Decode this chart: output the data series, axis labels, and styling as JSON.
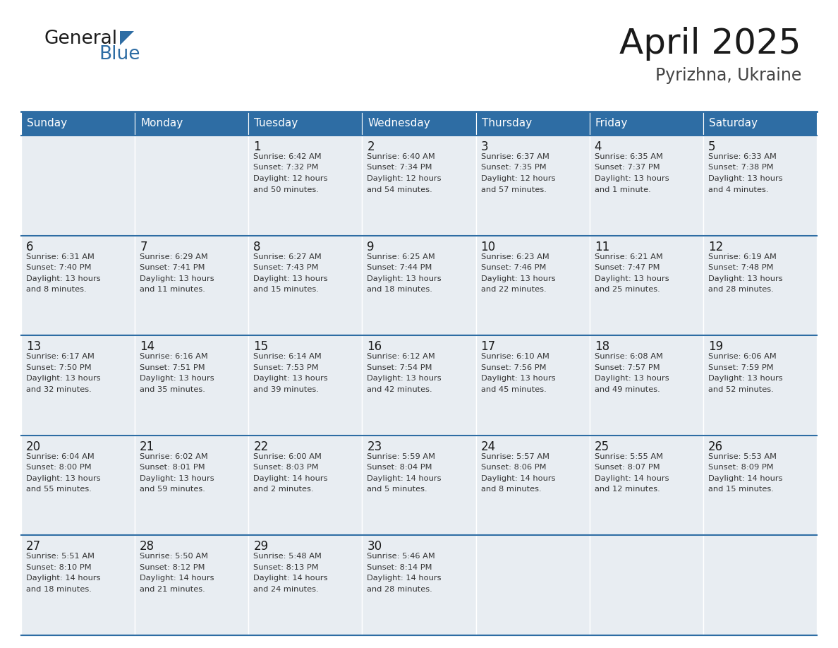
{
  "title": "April 2025",
  "subtitle": "Pyrizhna, Ukraine",
  "header_color": "#2e6da4",
  "header_text_color": "#ffffff",
  "cell_bg_color": "#e8edf2",
  "day_number_color": "#1a1a1a",
  "text_color": "#333333",
  "line_color": "#2e6da4",
  "days_of_week": [
    "Sunday",
    "Monday",
    "Tuesday",
    "Wednesday",
    "Thursday",
    "Friday",
    "Saturday"
  ],
  "weeks": [
    [
      {
        "day": "",
        "info": ""
      },
      {
        "day": "",
        "info": ""
      },
      {
        "day": "1",
        "info": "Sunrise: 6:42 AM\nSunset: 7:32 PM\nDaylight: 12 hours\nand 50 minutes."
      },
      {
        "day": "2",
        "info": "Sunrise: 6:40 AM\nSunset: 7:34 PM\nDaylight: 12 hours\nand 54 minutes."
      },
      {
        "day": "3",
        "info": "Sunrise: 6:37 AM\nSunset: 7:35 PM\nDaylight: 12 hours\nand 57 minutes."
      },
      {
        "day": "4",
        "info": "Sunrise: 6:35 AM\nSunset: 7:37 PM\nDaylight: 13 hours\nand 1 minute."
      },
      {
        "day": "5",
        "info": "Sunrise: 6:33 AM\nSunset: 7:38 PM\nDaylight: 13 hours\nand 4 minutes."
      }
    ],
    [
      {
        "day": "6",
        "info": "Sunrise: 6:31 AM\nSunset: 7:40 PM\nDaylight: 13 hours\nand 8 minutes."
      },
      {
        "day": "7",
        "info": "Sunrise: 6:29 AM\nSunset: 7:41 PM\nDaylight: 13 hours\nand 11 minutes."
      },
      {
        "day": "8",
        "info": "Sunrise: 6:27 AM\nSunset: 7:43 PM\nDaylight: 13 hours\nand 15 minutes."
      },
      {
        "day": "9",
        "info": "Sunrise: 6:25 AM\nSunset: 7:44 PM\nDaylight: 13 hours\nand 18 minutes."
      },
      {
        "day": "10",
        "info": "Sunrise: 6:23 AM\nSunset: 7:46 PM\nDaylight: 13 hours\nand 22 minutes."
      },
      {
        "day": "11",
        "info": "Sunrise: 6:21 AM\nSunset: 7:47 PM\nDaylight: 13 hours\nand 25 minutes."
      },
      {
        "day": "12",
        "info": "Sunrise: 6:19 AM\nSunset: 7:48 PM\nDaylight: 13 hours\nand 28 minutes."
      }
    ],
    [
      {
        "day": "13",
        "info": "Sunrise: 6:17 AM\nSunset: 7:50 PM\nDaylight: 13 hours\nand 32 minutes."
      },
      {
        "day": "14",
        "info": "Sunrise: 6:16 AM\nSunset: 7:51 PM\nDaylight: 13 hours\nand 35 minutes."
      },
      {
        "day": "15",
        "info": "Sunrise: 6:14 AM\nSunset: 7:53 PM\nDaylight: 13 hours\nand 39 minutes."
      },
      {
        "day": "16",
        "info": "Sunrise: 6:12 AM\nSunset: 7:54 PM\nDaylight: 13 hours\nand 42 minutes."
      },
      {
        "day": "17",
        "info": "Sunrise: 6:10 AM\nSunset: 7:56 PM\nDaylight: 13 hours\nand 45 minutes."
      },
      {
        "day": "18",
        "info": "Sunrise: 6:08 AM\nSunset: 7:57 PM\nDaylight: 13 hours\nand 49 minutes."
      },
      {
        "day": "19",
        "info": "Sunrise: 6:06 AM\nSunset: 7:59 PM\nDaylight: 13 hours\nand 52 minutes."
      }
    ],
    [
      {
        "day": "20",
        "info": "Sunrise: 6:04 AM\nSunset: 8:00 PM\nDaylight: 13 hours\nand 55 minutes."
      },
      {
        "day": "21",
        "info": "Sunrise: 6:02 AM\nSunset: 8:01 PM\nDaylight: 13 hours\nand 59 minutes."
      },
      {
        "day": "22",
        "info": "Sunrise: 6:00 AM\nSunset: 8:03 PM\nDaylight: 14 hours\nand 2 minutes."
      },
      {
        "day": "23",
        "info": "Sunrise: 5:59 AM\nSunset: 8:04 PM\nDaylight: 14 hours\nand 5 minutes."
      },
      {
        "day": "24",
        "info": "Sunrise: 5:57 AM\nSunset: 8:06 PM\nDaylight: 14 hours\nand 8 minutes."
      },
      {
        "day": "25",
        "info": "Sunrise: 5:55 AM\nSunset: 8:07 PM\nDaylight: 14 hours\nand 12 minutes."
      },
      {
        "day": "26",
        "info": "Sunrise: 5:53 AM\nSunset: 8:09 PM\nDaylight: 14 hours\nand 15 minutes."
      }
    ],
    [
      {
        "day": "27",
        "info": "Sunrise: 5:51 AM\nSunset: 8:10 PM\nDaylight: 14 hours\nand 18 minutes."
      },
      {
        "day": "28",
        "info": "Sunrise: 5:50 AM\nSunset: 8:12 PM\nDaylight: 14 hours\nand 21 minutes."
      },
      {
        "day": "29",
        "info": "Sunrise: 5:48 AM\nSunset: 8:13 PM\nDaylight: 14 hours\nand 24 minutes."
      },
      {
        "day": "30",
        "info": "Sunrise: 5:46 AM\nSunset: 8:14 PM\nDaylight: 14 hours\nand 28 minutes."
      },
      {
        "day": "",
        "info": ""
      },
      {
        "day": "",
        "info": ""
      },
      {
        "day": "",
        "info": ""
      }
    ]
  ]
}
